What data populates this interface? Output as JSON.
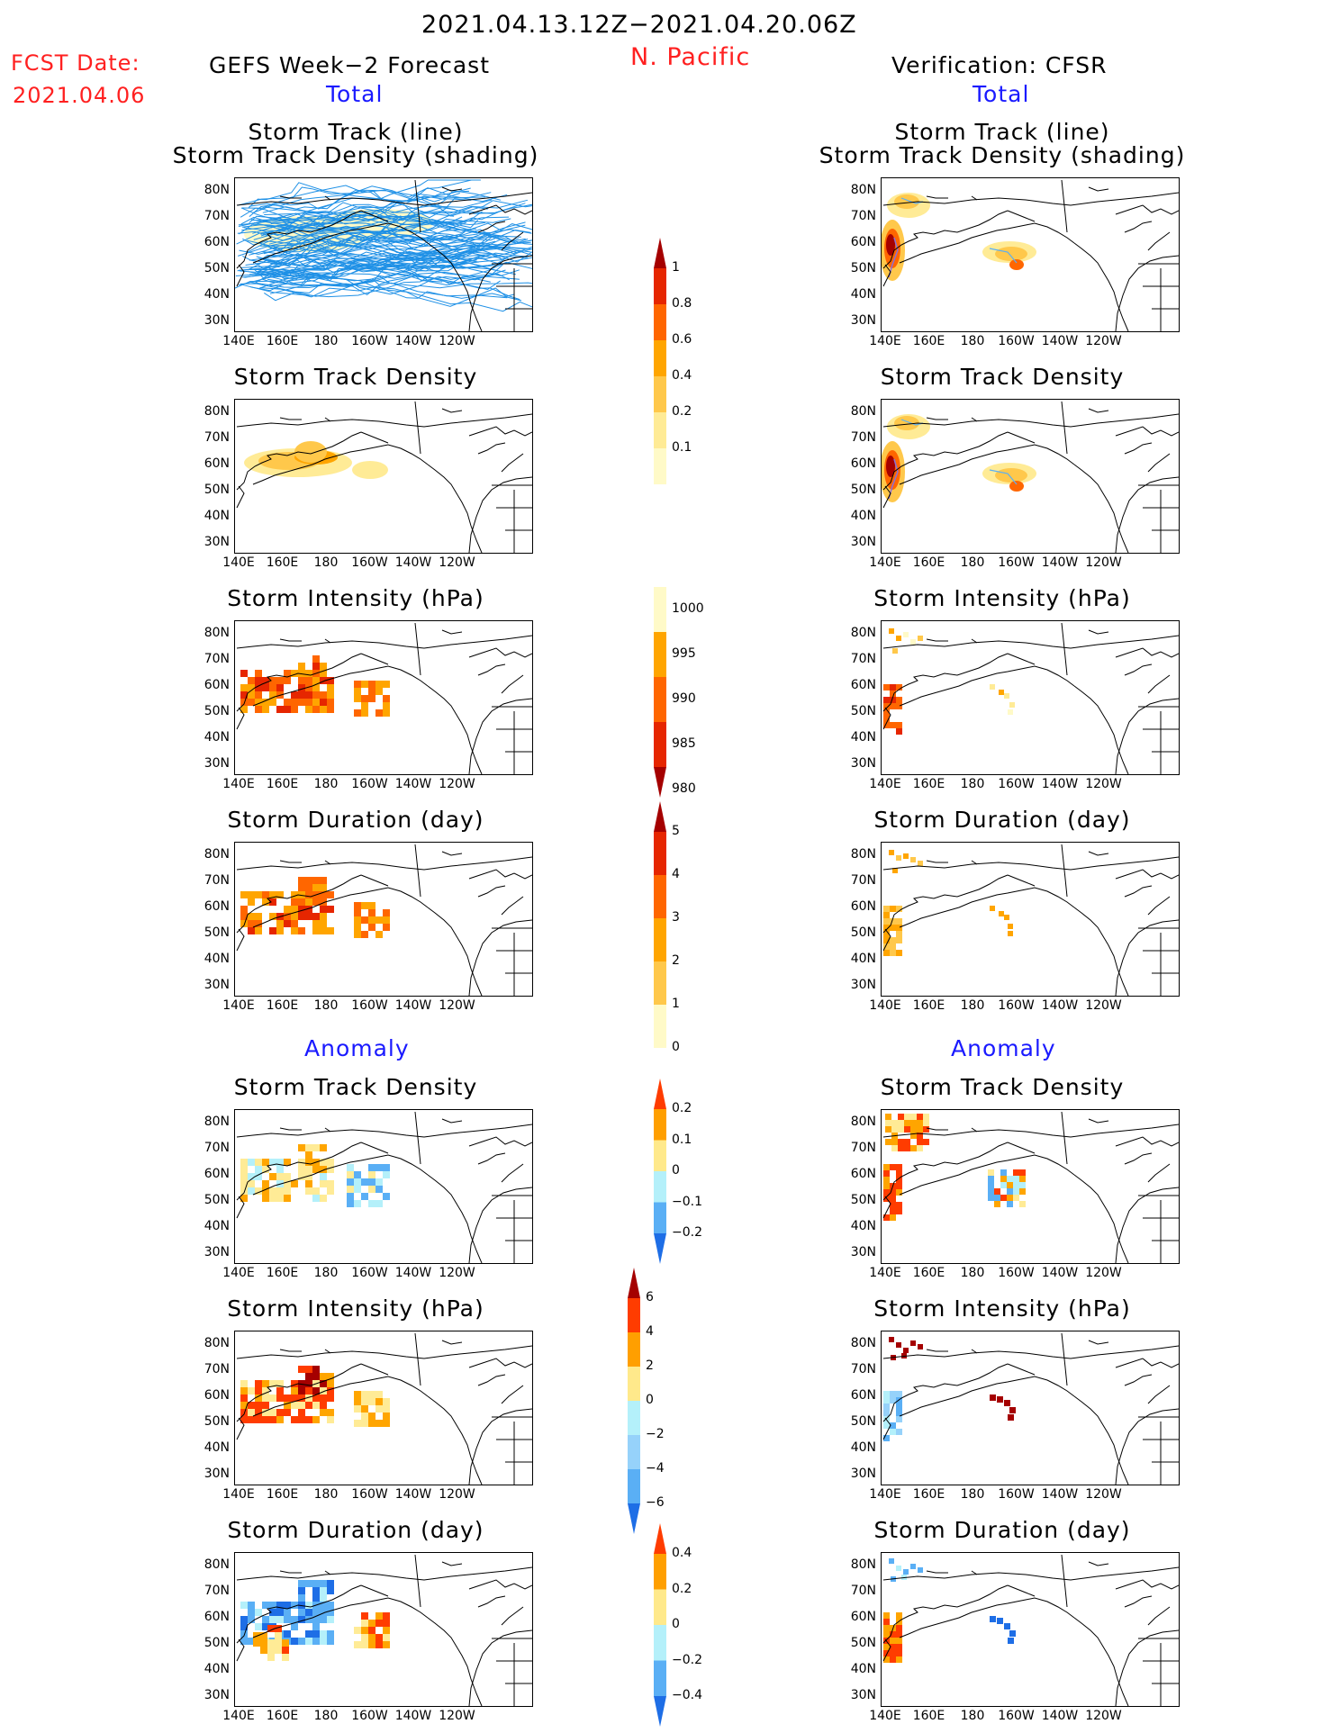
{
  "header": {
    "title": "2021.04.13.12Z−2021.04.20.06Z",
    "region": "N. Pacific",
    "fcst_label": "FCST Date:",
    "fcst_date": "2021.04.06",
    "left_title": "GEFS Week−2 Forecast",
    "right_title": "Verification: CFSR",
    "total_label": "Total",
    "anomaly_label": "Anomaly"
  },
  "panel_titles": {
    "track_line": "Storm Track (line)",
    "track_density_shading": "Storm Track Density (shading)",
    "track_density": "Storm Track Density",
    "intensity": "Storm Intensity (hPa)",
    "duration": "Storm Duration (day)"
  },
  "axes": {
    "lat_labels": [
      "80N",
      "70N",
      "60N",
      "50N",
      "40N",
      "30N"
    ],
    "lon_labels": [
      "140E",
      "160E",
      "180",
      "160W",
      "140W",
      "120W"
    ]
  },
  "colorbars": {
    "density_total": {
      "labels": [
        "1",
        "0.8",
        "0.6",
        "0.4",
        "0.2",
        "0.1"
      ],
      "colors": [
        "#a50000",
        "#e62600",
        "#ff6600",
        "#ffa500",
        "#ffc84b",
        "#ffeb96",
        "#fffac8"
      ]
    },
    "intensity_total": {
      "labels": [
        "1000",
        "995",
        "990",
        "985",
        "980"
      ],
      "colors": [
        "#fffac8",
        "#ffa500",
        "#ff6600",
        "#e62600",
        "#a50000"
      ]
    },
    "duration_total": {
      "labels": [
        "5",
        "4",
        "3",
        "2",
        "1",
        "0"
      ],
      "colors": [
        "#a50000",
        "#e62600",
        "#ff6600",
        "#ffa500",
        "#ffc84b",
        "#fffac8"
      ]
    },
    "density_anom": {
      "labels": [
        "0.2",
        "0.1",
        "0",
        "−0.1",
        "−0.2"
      ],
      "colors": [
        "#ff3c00",
        "#ff9f00",
        "#ffe98b",
        "#b4f0fa",
        "#5aaff5",
        "#1e6ee6"
      ]
    },
    "intensity_anom": {
      "labels": [
        "6",
        "4",
        "2",
        "0",
        "−2",
        "−4",
        "−6"
      ],
      "colors": [
        "#a50000",
        "#ff3c00",
        "#ff9f00",
        "#ffe98b",
        "#b4f0fa",
        "#96d2fa",
        "#5aaff5",
        "#1e6ee6"
      ]
    },
    "duration_anom": {
      "labels": [
        "0.4",
        "0.2",
        "0",
        "−0.2",
        "−0.4"
      ],
      "colors": [
        "#ff3c00",
        "#ff9f00",
        "#ffe98b",
        "#b4f0fa",
        "#5aaff5",
        "#1e6ee6"
      ]
    }
  }
}
